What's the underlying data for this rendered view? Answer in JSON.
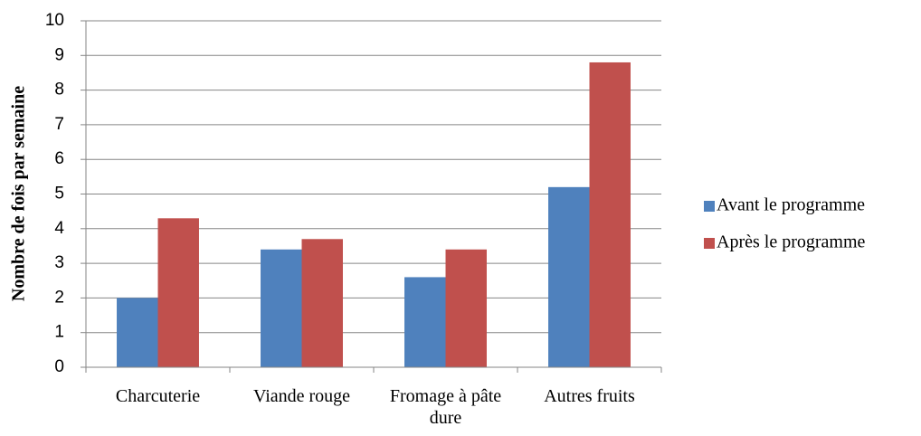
{
  "chart_data": {
    "type": "bar",
    "y_label": "Nombre de fois par semaine",
    "categories": [
      "Charcuterie",
      "Viande rouge",
      "Fromage à pâte dure",
      "Autres fruits"
    ],
    "series": [
      {
        "name": "Avant le programme",
        "color": "#4f81bd",
        "values": [
          2.0,
          3.4,
          2.6,
          5.2
        ]
      },
      {
        "name": "Après le programme",
        "color": "#c0504d",
        "values": [
          4.3,
          3.7,
          3.4,
          8.8
        ]
      }
    ],
    "ylim": [
      0,
      10
    ],
    "yticks": [
      0,
      1,
      2,
      3,
      4,
      5,
      6,
      7,
      8,
      9,
      10
    ],
    "grid": true,
    "legend": "right"
  }
}
